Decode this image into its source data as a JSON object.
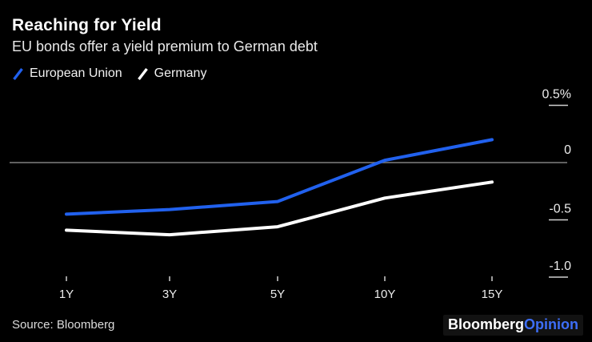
{
  "header": {
    "title": "Reaching for Yield",
    "subtitle": "EU bonds offer a yield premium to German debt"
  },
  "chart_data": {
    "type": "line",
    "categories": [
      "1Y",
      "3Y",
      "5Y",
      "10Y",
      "15Y"
    ],
    "series": [
      {
        "name": "European Union",
        "color": "#2161ee",
        "values": [
          -0.45,
          -0.41,
          -0.34,
          0.02,
          0.2
        ]
      },
      {
        "name": "Germany",
        "color": "#ffffff",
        "values": [
          -0.59,
          -0.63,
          -0.56,
          -0.31,
          -0.17
        ]
      }
    ],
    "yticks": {
      "values": [
        0.5,
        0,
        -0.5,
        -1.0
      ],
      "labels": [
        "0.5%",
        "0",
        "-0.5",
        "-1.0"
      ]
    },
    "ylim": [
      -1.05,
      0.65
    ],
    "xlabel": "",
    "ylabel": "",
    "grid": "zero-line-only",
    "legend_position": "top-left",
    "zero_line_color": "#808080",
    "tick_color": "#cfcfcf",
    "tick_label_color": "#ececec"
  },
  "footer": {
    "source": "Source: Bloomberg",
    "logo": {
      "part1": "Bloomberg",
      "part2": "Opinion"
    }
  }
}
